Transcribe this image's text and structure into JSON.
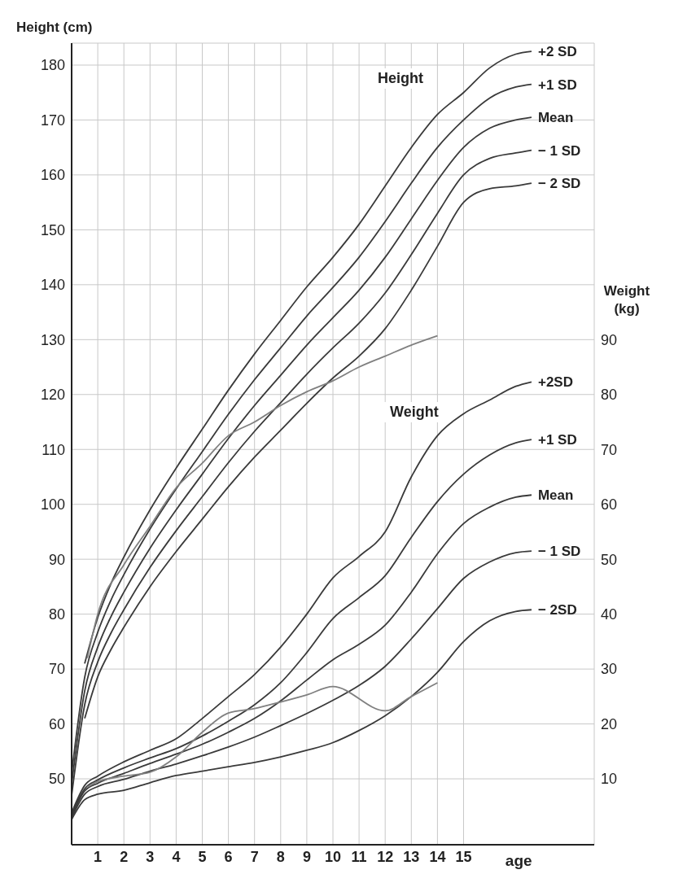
{
  "chart_data": {
    "type": "line",
    "ylabel": "Height (cm)",
    "y2label": "Weight (kg)",
    "xlabel": "age",
    "xlim": [
      0,
      20
    ],
    "xticks": [
      1,
      2,
      3,
      4,
      5,
      6,
      7,
      8,
      9,
      10,
      11,
      12,
      13,
      14,
      15
    ],
    "ylim": [
      38,
      184
    ],
    "yticks": [
      50,
      60,
      70,
      80,
      90,
      100,
      110,
      120,
      130,
      140,
      150,
      160,
      170,
      180
    ],
    "y2lim": [
      -2,
      144
    ],
    "y2ticks": [
      10,
      20,
      30,
      40,
      50,
      60,
      70,
      80,
      90
    ],
    "grid": true,
    "legend": false,
    "marker": "none",
    "line_style": "solid",
    "annotations": [
      "Height",
      "Weight"
    ],
    "series": [
      {
        "name": "+2 SD",
        "color": "#3a3a3a",
        "x": [
          0.5,
          1,
          1.5,
          2,
          3,
          4,
          5,
          6,
          7,
          8,
          9,
          10,
          11,
          12,
          13,
          14,
          15,
          16,
          17,
          17.6
        ],
        "values": [
          71,
          79.4,
          85.5,
          90.4,
          99,
          106.6,
          113.7,
          120.8,
          127.4,
          133.5,
          139.6,
          145,
          151,
          158,
          165,
          171,
          175,
          179.5,
          182,
          182.5
        ]
      },
      {
        "name": "+1 SD",
        "color": "#3a3a3a",
        "x": [
          0,
          0.5,
          1,
          1.5,
          2,
          3,
          4,
          5,
          6,
          7,
          8,
          9,
          10,
          11,
          12,
          13,
          14,
          15,
          16,
          17,
          17.6
        ],
        "values": [
          51,
          68.5,
          76.7,
          82.5,
          87.2,
          95.5,
          102.8,
          109.6,
          116.4,
          122.7,
          128.5,
          134.3,
          139.5,
          145,
          151.5,
          158.5,
          165,
          170,
          174,
          176,
          176.5
        ]
      },
      {
        "name": "Mean",
        "color": "#3a3a3a",
        "x": [
          0,
          0.5,
          1,
          1.5,
          2,
          3,
          4,
          5,
          6,
          7,
          8,
          9,
          10,
          11,
          12,
          13,
          14,
          15,
          16,
          17,
          17.6
        ],
        "values": [
          49,
          66,
          74,
          79.5,
          84,
          92,
          99,
          105.5,
          112,
          118,
          123.5,
          129,
          134,
          139,
          145,
          152,
          159,
          165,
          168.5,
          170,
          170.5
        ]
      },
      {
        "name": "− 1 SD",
        "color": "#3a3a3a",
        "x": [
          0,
          0.5,
          1,
          1.5,
          2,
          3,
          4,
          5,
          6,
          7,
          8,
          9,
          10,
          11,
          12,
          13,
          14,
          15,
          16,
          17,
          17.6
        ],
        "values": [
          47,
          63.5,
          71.3,
          76.5,
          80.8,
          88.5,
          95.2,
          101.4,
          107.6,
          113.3,
          118.5,
          123.7,
          128.5,
          133,
          138.5,
          145.5,
          153,
          160,
          163,
          164,
          164.5
        ]
      },
      {
        "name": "− 2 SD",
        "color": "#3a3a3a",
        "x": [
          0.5,
          1,
          1.5,
          2,
          3,
          4,
          5,
          6,
          7,
          8,
          9,
          10,
          11,
          12,
          13,
          14,
          15,
          16,
          17,
          17.6
        ],
        "values": [
          61,
          68.6,
          73.5,
          77.6,
          85,
          91.4,
          97.3,
          103.2,
          108.6,
          113.5,
          118.4,
          123,
          127,
          132,
          139,
          147,
          155,
          157.5,
          158,
          158.5
        ]
      },
      {
        "color": "#808080",
        "x": [
          0.6,
          1,
          2,
          3,
          4,
          5,
          6,
          7,
          8,
          9,
          10,
          11,
          12,
          13,
          14
        ],
        "values": [
          72,
          80,
          89,
          96,
          103,
          107.5,
          112.5,
          115,
          118,
          120.5,
          122.5,
          125,
          127,
          129,
          130.7
        ]
      },
      {
        "name": "+2SD",
        "color": "#3a3a3a",
        "axis": "y2",
        "x": [
          0,
          0.5,
          1,
          2,
          3,
          4,
          5,
          6,
          7,
          8,
          9,
          10,
          11,
          12,
          13,
          14,
          15,
          16,
          17,
          17.6
        ],
        "values": [
          3.8,
          8.8,
          10.5,
          13.1,
          15.2,
          17.3,
          21,
          25,
          29,
          34,
          40,
          46.6,
          50.5,
          55,
          65,
          72.5,
          76.5,
          79,
          81.5,
          82.3
        ]
      },
      {
        "name": "+1 SD",
        "color": "#3a3a3a",
        "axis": "y2",
        "x": [
          0,
          0.5,
          1,
          2,
          3,
          4,
          5,
          6,
          7,
          8,
          9,
          10,
          11,
          12,
          13,
          14,
          15,
          16,
          17,
          17.6
        ],
        "values": [
          3.5,
          8.2,
          9.8,
          12,
          13.8,
          15.5,
          17.8,
          20.5,
          23.5,
          27.5,
          33,
          39.2,
          43,
          47,
          54,
          60.5,
          65.5,
          69,
          71.2,
          71.8
        ]
      },
      {
        "name": "Mean",
        "color": "#3a3a3a",
        "axis": "y2",
        "x": [
          0,
          0.5,
          1,
          2,
          3,
          4,
          5,
          6,
          7,
          8,
          9,
          10,
          11,
          12,
          13,
          14,
          15,
          16,
          17,
          17.6
        ],
        "values": [
          3.2,
          7.8,
          9.2,
          11,
          12.8,
          14.5,
          16.3,
          18.5,
          21,
          24.2,
          28,
          31.7,
          34.5,
          38,
          44,
          51,
          56.5,
          59.5,
          61.3,
          61.7
        ]
      },
      {
        "name": "− 1 SD",
        "color": "#3a3a3a",
        "axis": "y2",
        "x": [
          0,
          0.5,
          1,
          2,
          3,
          4,
          5,
          6,
          7,
          8,
          9,
          10,
          11,
          12,
          13,
          14,
          15,
          16,
          17,
          17.6
        ],
        "values": [
          2.9,
          7.2,
          8.6,
          9.9,
          11.4,
          12.7,
          14.2,
          15.8,
          17.6,
          19.7,
          21.9,
          24.3,
          27,
          30.5,
          35.5,
          41,
          46.5,
          49.5,
          51.2,
          51.5
        ]
      },
      {
        "name": "− 2SD",
        "color": "#3a3a3a",
        "axis": "y2",
        "x": [
          0,
          0.5,
          1,
          2,
          3,
          4,
          5,
          6,
          7,
          8,
          9,
          10,
          11,
          12,
          13,
          14,
          15,
          16,
          17,
          17.6
        ],
        "values": [
          2.6,
          6.2,
          7.2,
          7.9,
          9.3,
          10.6,
          11.4,
          12.2,
          13,
          14,
          15.2,
          16.6,
          18.8,
          21.5,
          25,
          29.4,
          35,
          38.8,
          40.5,
          40.8
        ]
      },
      {
        "color": "#808080",
        "axis": "y2",
        "x": [
          0.6,
          1,
          2,
          3,
          4,
          5,
          6,
          7,
          8,
          9,
          10,
          12,
          13,
          14
        ],
        "values": [
          8.5,
          9.5,
          10.5,
          11.2,
          14,
          18.5,
          22,
          22.8,
          24,
          25.3,
          26.8,
          22.4,
          25,
          27.5
        ]
      }
    ]
  }
}
